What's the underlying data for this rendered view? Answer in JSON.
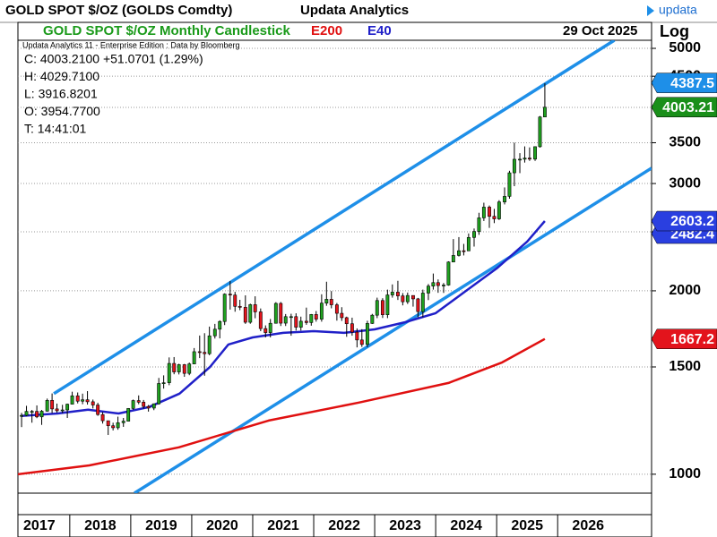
{
  "header": {
    "title": "GOLD SPOT $/OZ (GOLDS Comdty)",
    "center": "Updata Analytics",
    "logo": "updata"
  },
  "chart_data": {
    "type": "candlestick",
    "legend": {
      "title": "GOLD SPOT $/OZ Monthly Candlestick",
      "date": "29 Oct 2025"
    },
    "source": "Updata Analytics 11 - Enterprise Edition : Data by Bloomberg",
    "info": [
      "C: 4003.2100  +51.0701 (1.29%)",
      "H: 4029.7100",
      "L: 3916.8201",
      "O: 3954.7700",
      "T: 14:41:01"
    ],
    "scale_label": "Log",
    "log_scale": true,
    "grid": true,
    "up_color": "#1fa11f",
    "down_color": "#e3141c",
    "x": [
      2017.21,
      2017.29,
      2017.38,
      2017.46,
      2017.54,
      2017.63,
      2017.71,
      2017.79,
      2017.88,
      2017.96,
      2018.04,
      2018.13,
      2018.21,
      2018.29,
      2018.38,
      2018.46,
      2018.54,
      2018.63,
      2018.71,
      2018.79,
      2018.88,
      2018.96,
      2019.04,
      2019.13,
      2019.21,
      2019.29,
      2019.38,
      2019.46,
      2019.54,
      2019.63,
      2019.71,
      2019.79,
      2019.88,
      2019.96,
      2020.04,
      2020.13,
      2020.21,
      2020.29,
      2020.38,
      2020.46,
      2020.54,
      2020.63,
      2020.71,
      2020.79,
      2020.88,
      2020.96,
      2021.04,
      2021.13,
      2021.21,
      2021.29,
      2021.38,
      2021.46,
      2021.54,
      2021.63,
      2021.71,
      2021.79,
      2021.88,
      2021.96,
      2022.04,
      2022.13,
      2022.21,
      2022.29,
      2022.38,
      2022.46,
      2022.54,
      2022.63,
      2022.71,
      2022.79,
      2022.88,
      2022.96,
      2023.04,
      2023.13,
      2023.21,
      2023.29,
      2023.38,
      2023.46,
      2023.54,
      2023.63,
      2023.71,
      2023.79,
      2023.88,
      2023.96,
      2024.04,
      2024.13,
      2024.21,
      2024.29,
      2024.38,
      2024.46,
      2024.54,
      2024.63,
      2024.71,
      2024.79,
      2024.88,
      2024.96,
      2025.04,
      2025.13,
      2025.21,
      2025.29,
      2025.38,
      2025.46,
      2025.54,
      2025.63,
      2025.71,
      2025.79
    ],
    "open": [
      1248,
      1249,
      1268,
      1268,
      1242,
      1269,
      1322,
      1280,
      1271,
      1275,
      1303,
      1345,
      1318,
      1325,
      1315,
      1299,
      1253,
      1224,
      1201,
      1192,
      1215,
      1222,
      1282,
      1321,
      1313,
      1292,
      1284,
      1305,
      1409,
      1413,
      1520,
      1472,
      1513,
      1464,
      1517,
      1589,
      1585,
      1577,
      1687,
      1730,
      1781,
      1975,
      1968,
      1886,
      1879,
      1776,
      1898,
      1847,
      1734,
      1708,
      1769,
      1907,
      1770,
      1814,
      1814,
      1743,
      1783,
      1774,
      1829,
      1797,
      1909,
      1937,
      1897,
      1837,
      1807,
      1766,
      1711,
      1661,
      1633,
      1768,
      1824,
      1928,
      1827,
      1969,
      1990,
      1962,
      1919,
      1965,
      1940,
      1849,
      1983,
      2036,
      2063,
      2040,
      2044,
      2230,
      2286,
      2327,
      2326,
      2447,
      2503,
      2635,
      2744,
      2650,
      2625,
      2798,
      2858,
      3124,
      3288,
      3289,
      3303,
      3290,
      3448,
      3858
    ],
    "high": [
      1261,
      1295,
      1275,
      1297,
      1275,
      1331,
      1357,
      1306,
      1300,
      1306,
      1366,
      1362,
      1356,
      1369,
      1326,
      1310,
      1265,
      1219,
      1215,
      1243,
      1237,
      1284,
      1326,
      1347,
      1324,
      1299,
      1306,
      1439,
      1453,
      1555,
      1557,
      1518,
      1517,
      1525,
      1611,
      1689,
      1704,
      1747,
      1765,
      1789,
      1981,
      2075,
      1992,
      1933,
      1966,
      1905,
      1959,
      1871,
      1755,
      1798,
      1916,
      1917,
      1832,
      1834,
      1837,
      1814,
      1877,
      1832,
      1853,
      1974,
      2070,
      1998,
      1910,
      1880,
      1814,
      1807,
      1735,
      1730,
      1786,
      1833,
      1949,
      1945,
      2009,
      2049,
      2077,
      1983,
      1987,
      1949,
      1947,
      2009,
      2052,
      2135,
      2088,
      2060,
      2236,
      2432,
      2450,
      2388,
      2484,
      2531,
      2686,
      2790,
      2761,
      2726,
      2817,
      2956,
      3148,
      3500,
      3365,
      3452,
      3439,
      3453,
      3872,
      4381
    ],
    "low": [
      1195,
      1245,
      1215,
      1236,
      1205,
      1267,
      1260,
      1262,
      1260,
      1237,
      1303,
      1307,
      1303,
      1301,
      1282,
      1247,
      1211,
      1160,
      1180,
      1183,
      1196,
      1221,
      1276,
      1303,
      1281,
      1267,
      1274,
      1301,
      1382,
      1400,
      1459,
      1458,
      1445,
      1454,
      1517,
      1551,
      1451,
      1568,
      1670,
      1671,
      1757,
      1863,
      1848,
      1859,
      1765,
      1766,
      1803,
      1717,
      1677,
      1677,
      1767,
      1751,
      1751,
      1688,
      1721,
      1721,
      1759,
      1753,
      1780,
      1780,
      1890,
      1872,
      1787,
      1785,
      1681,
      1688,
      1615,
      1618,
      1616,
      1765,
      1804,
      1805,
      1804,
      1949,
      1932,
      1893,
      1903,
      1884,
      1810,
      1810,
      1931,
      2009,
      1985,
      1984,
      2039,
      2228,
      2277,
      2286,
      2353,
      2364,
      2471,
      2604,
      2537,
      2583,
      2614,
      2772,
      2833,
      2970,
      3120,
      3247,
      3268,
      3268,
      3436,
      3858
    ],
    "close": [
      1249,
      1268,
      1268,
      1242,
      1269,
      1322,
      1280,
      1271,
      1275,
      1303,
      1345,
      1318,
      1325,
      1315,
      1299,
      1253,
      1224,
      1201,
      1192,
      1215,
      1222,
      1282,
      1321,
      1313,
      1292,
      1284,
      1305,
      1409,
      1413,
      1520,
      1472,
      1513,
      1464,
      1517,
      1589,
      1585,
      1577,
      1687,
      1730,
      1781,
      1975,
      1968,
      1886,
      1879,
      1776,
      1898,
      1847,
      1734,
      1708,
      1769,
      1907,
      1770,
      1814,
      1814,
      1743,
      1783,
      1774,
      1829,
      1797,
      1909,
      1937,
      1897,
      1837,
      1807,
      1766,
      1711,
      1661,
      1633,
      1768,
      1824,
      1928,
      1827,
      1969,
      1990,
      1962,
      1919,
      1965,
      1940,
      1849,
      1983,
      2036,
      2063,
      2040,
      2044,
      2230,
      2286,
      2327,
      2326,
      2447,
      2503,
      2635,
      2744,
      2650,
      2625,
      2798,
      2858,
      3124,
      3288,
      3289,
      3303,
      3290,
      3448,
      3858,
      4003
    ],
    "lines": [
      {
        "name": "E200",
        "color": "#e01010",
        "x": [
          2017.15,
          2018.32,
          2019.79,
          2021.26,
          2022.74,
          2024.21,
          2025.09,
          2025.79
        ],
        "values": [
          1000,
          1034,
          1107,
          1225,
          1311,
          1412,
          1526,
          1667.2
        ]
      },
      {
        "name": "E40",
        "color": "#2020c8",
        "x": [
          2017.2,
          2017.8,
          2018.3,
          2018.8,
          2019.3,
          2019.8,
          2020.3,
          2020.6,
          2021.0,
          2021.5,
          2022.0,
          2022.5,
          2023.0,
          2023.5,
          2024.0,
          2024.5,
          2025.0,
          2025.5,
          2025.79
        ],
        "values": [
          1246,
          1258,
          1276,
          1258,
          1289,
          1356,
          1500,
          1633,
          1677,
          1706,
          1717,
          1706,
          1729,
          1776,
          1838,
          2000,
          2177,
          2409,
          2603.2
        ]
      }
    ],
    "trendlines": [
      {
        "color": "#1e8fe8",
        "x": [
          2017.74,
          2026.93
        ],
        "values": [
          1356,
          5155
        ]
      },
      {
        "color": "#1e8fe8",
        "x": [
          2019.06,
          2027.54
        ],
        "values": [
          931,
          3180
        ]
      }
    ],
    "tags": {
      "values": [
        4387.5,
        4003.21,
        2482.4,
        2603.2,
        1667.2
      ],
      "colors": [
        "#1e8fe8",
        "#1a8f1a",
        "#2a3fe0",
        "#2a3fe0",
        "#e3141c"
      ]
    },
    "xlim": [
      2017.15,
      2027.54
    ],
    "xticks": [
      2017,
      2018,
      2019,
      2020,
      2021,
      2022,
      2023,
      2024,
      2025,
      2026
    ],
    "ylim": [
      931,
      5155
    ],
    "yticks": [
      1000,
      1500,
      2000,
      2500,
      3000,
      3500,
      4000,
      4500,
      5000
    ]
  }
}
